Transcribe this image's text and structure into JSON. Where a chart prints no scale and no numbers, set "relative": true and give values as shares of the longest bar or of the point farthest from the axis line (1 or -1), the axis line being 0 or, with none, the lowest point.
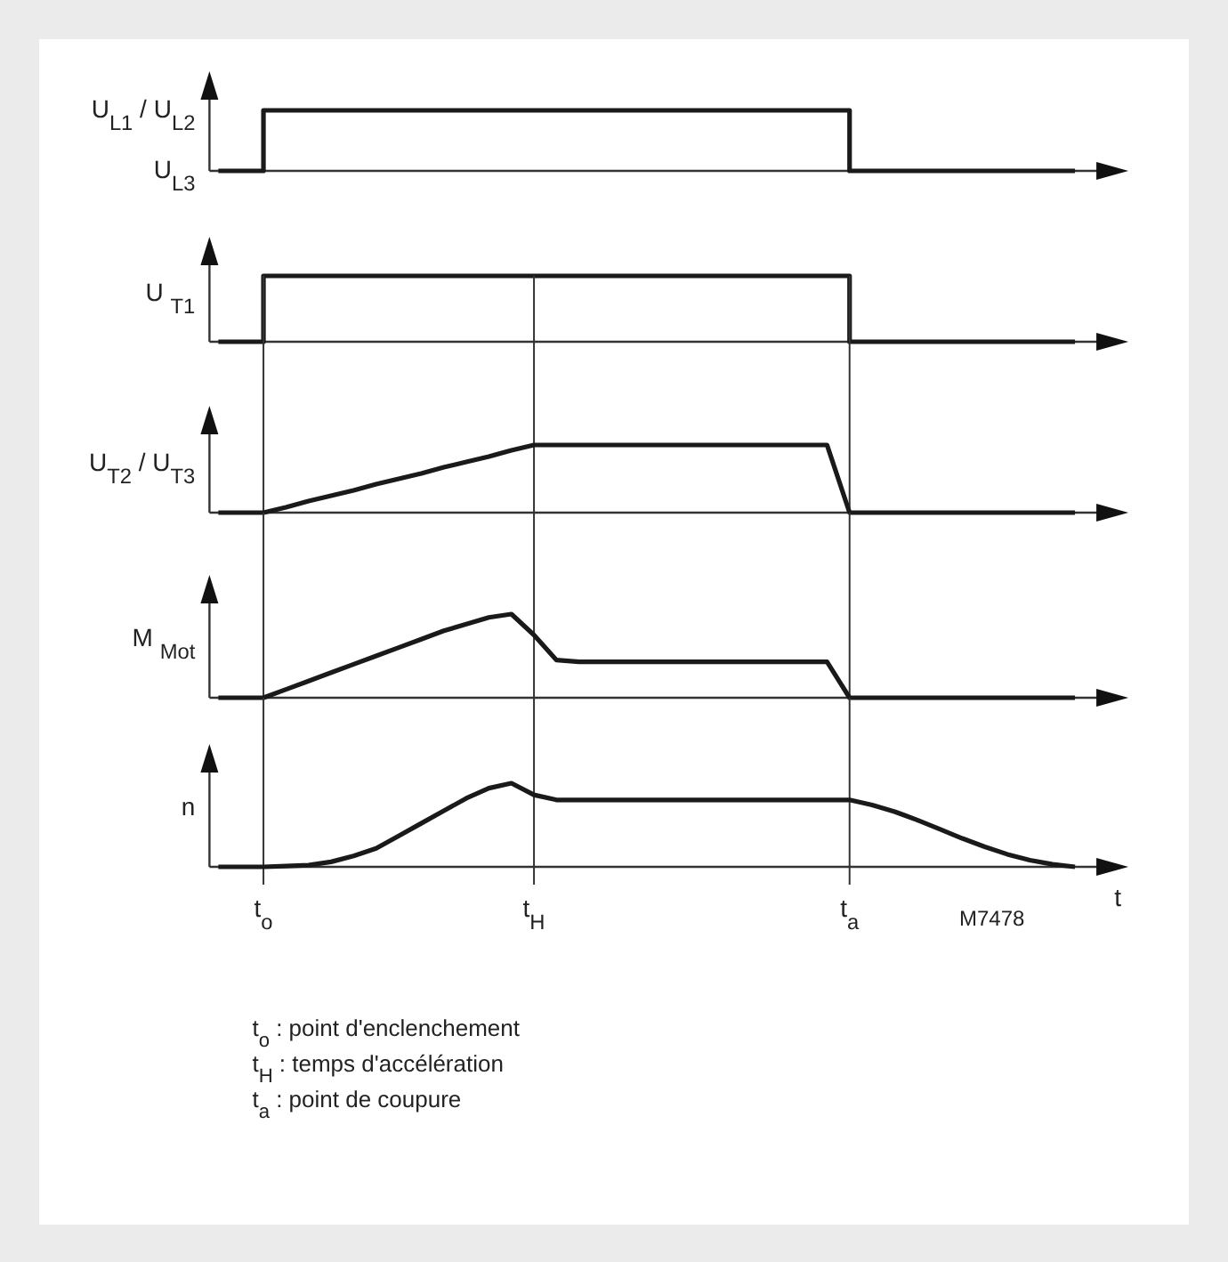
{
  "chart_data": [
    {
      "type": "step",
      "relative": true,
      "ylabel": "U$_{L1}$ / U$_{L2}$",
      "annotations": [
        "U$_{L3}$"
      ],
      "tick_labels": false,
      "categories": [
        null,
        null,
        null,
        null,
        null,
        null,
        null,
        null,
        null,
        null,
        null,
        null,
        null,
        null,
        null,
        null,
        null,
        null,
        null,
        null,
        null,
        null,
        null,
        null,
        null,
        null,
        null,
        null,
        null,
        null,
        null,
        null,
        null,
        null,
        null,
        null,
        null,
        null,
        null
      ],
      "series": [
        {
          "color": "#1a1a1a",
          "values": [
            0,
            0,
            1,
            1,
            1,
            1,
            1,
            1,
            1,
            1,
            1,
            1,
            1,
            1,
            1,
            1,
            1,
            1,
            1,
            1,
            1,
            1,
            1,
            1,
            1,
            1,
            1,
            1,
            0,
            0,
            0,
            0,
            0,
            0,
            0,
            0,
            0,
            0,
            0
          ]
        }
      ]
    },
    {
      "type": "step",
      "relative": true,
      "ylabel": "U $_{T1}$",
      "tick_labels": false,
      "categories": [
        null,
        null,
        null,
        null,
        null,
        null,
        null,
        null,
        null,
        null,
        null,
        null,
        null,
        null,
        null,
        null,
        null,
        null,
        null,
        null,
        null,
        null,
        null,
        null,
        null,
        null,
        null,
        null,
        null,
        null,
        null,
        null,
        null,
        null,
        null,
        null,
        null,
        null,
        null
      ],
      "series": [
        {
          "color": "#1a1a1a",
          "values": [
            0,
            0,
            1,
            1,
            1,
            1,
            1,
            1,
            1,
            1,
            1,
            1,
            1,
            1,
            1,
            1,
            1,
            1,
            1,
            1,
            1,
            1,
            1,
            1,
            1,
            1,
            1,
            1,
            0,
            0,
            0,
            0,
            0,
            0,
            0,
            0,
            0,
            0,
            0
          ]
        }
      ]
    },
    {
      "type": "line",
      "relative": true,
      "ylabel": "U$_{T2}$ / U$_{T3}$",
      "tick_labels": false,
      "categories": [
        null,
        null,
        "t$_{o}$",
        null,
        null,
        null,
        null,
        null,
        null,
        null,
        null,
        null,
        null,
        null,
        "t$_{H}$",
        null,
        null,
        null,
        null,
        null,
        null,
        null,
        null,
        null,
        null,
        null,
        null,
        null,
        "t$_{a}$",
        null,
        null,
        null,
        null,
        null,
        null,
        null,
        null,
        null,
        null
      ],
      "ref_lines": [
        {
          "axis": "x",
          "value": "t$_{o}$",
          "label": null
        },
        {
          "axis": "x",
          "value": "t$_{H}$",
          "label": null
        },
        {
          "axis": "x",
          "value": "t$_{a}$",
          "label": null
        }
      ],
      "series": [
        {
          "color": "#1a1a1a",
          "values": [
            0,
            0,
            0,
            0.08,
            0.17,
            0.25,
            0.33,
            0.42,
            0.5,
            0.58,
            0.67,
            0.75,
            0.83,
            0.92,
            1,
            1,
            1,
            1,
            1,
            1,
            1,
            1,
            1,
            1,
            1,
            1,
            1,
            1,
            0,
            0,
            0,
            0,
            0,
            0,
            0,
            0,
            0,
            0,
            0
          ]
        }
      ]
    },
    {
      "type": "line",
      "relative": true,
      "ylabel": "M $_{Mot}$",
      "tick_labels": false,
      "categories": [
        null,
        null,
        "t$_{o}$",
        null,
        null,
        null,
        null,
        null,
        null,
        null,
        null,
        null,
        null,
        null,
        "t$_{H}$",
        null,
        null,
        null,
        null,
        null,
        null,
        null,
        null,
        null,
        null,
        null,
        null,
        null,
        "t$_{a}$",
        null,
        null,
        null,
        null,
        null,
        null,
        null,
        null,
        null,
        null
      ],
      "ref_lines": [
        {
          "axis": "x",
          "value": "t$_{o}$",
          "label": null
        },
        {
          "axis": "x",
          "value": "t$_{H}$",
          "label": null
        },
        {
          "axis": "x",
          "value": "t$_{a}$",
          "label": null
        }
      ],
      "series": [
        {
          "color": "#1a1a1a",
          "values": [
            0,
            0,
            0,
            0.1,
            0.2,
            0.3,
            0.4,
            0.5,
            0.6,
            0.7,
            0.8,
            0.88,
            0.96,
            1,
            0.75,
            0.45,
            0.43,
            0.43,
            0.43,
            0.43,
            0.43,
            0.43,
            0.43,
            0.43,
            0.43,
            0.43,
            0.43,
            0.43,
            0,
            0,
            0,
            0,
            0,
            0,
            0,
            0,
            0,
            0,
            0
          ]
        }
      ]
    },
    {
      "type": "line",
      "relative": true,
      "ylabel": "n",
      "xlabel": "t",
      "categories": [
        null,
        null,
        "t$_{o}$",
        null,
        null,
        null,
        null,
        null,
        null,
        null,
        null,
        null,
        null,
        null,
        "t$_{H}$",
        null,
        null,
        null,
        null,
        null,
        null,
        null,
        null,
        null,
        null,
        null,
        null,
        null,
        "t$_{a}$",
        null,
        null,
        null,
        null,
        null,
        null,
        null,
        null,
        null,
        null
      ],
      "ref_lines": [
        {
          "axis": "x",
          "value": "t$_{o}$",
          "label": null
        },
        {
          "axis": "x",
          "value": "t$_{H}$",
          "label": null
        },
        {
          "axis": "x",
          "value": "t$_{a}$",
          "label": null
        }
      ],
      "annotations": [
        "M7478",
        "t$_{o}$  :  point d'enclenchement",
        "t$_{H}$  :  temps d'accélération",
        "t$_{a}$  :  point de coupure"
      ],
      "series": [
        {
          "color": "#1a1a1a",
          "values": [
            0,
            0,
            0,
            0.01,
            0.02,
            0.06,
            0.13,
            0.22,
            0.37,
            0.52,
            0.67,
            0.82,
            0.94,
            1,
            0.86,
            0.8,
            0.8,
            0.8,
            0.8,
            0.8,
            0.8,
            0.8,
            0.8,
            0.8,
            0.8,
            0.8,
            0.8,
            0.8,
            0.8,
            0.74,
            0.66,
            0.56,
            0.45,
            0.34,
            0.24,
            0.15,
            0.08,
            0.03,
            0
          ]
        }
      ]
    }
  ]
}
